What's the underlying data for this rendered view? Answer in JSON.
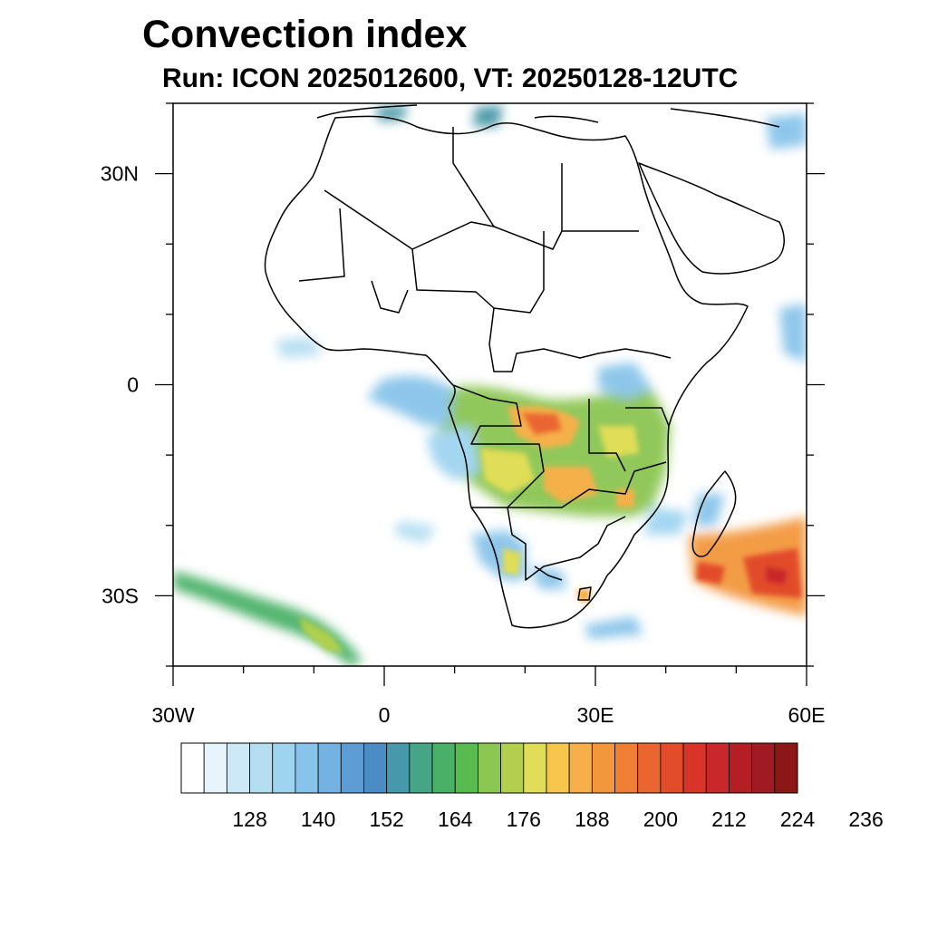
{
  "title": "Convection index",
  "subtitle": "Run: ICON 2025012600,  VT: 20250128-12UTC",
  "map": {
    "lon_range": [
      -30,
      60
    ],
    "lat_range": [
      -40,
      40
    ],
    "lon_ticks": [
      {
        "value": -30,
        "label": "30W"
      },
      {
        "value": 0,
        "label": "0"
      },
      {
        "value": 30,
        "label": "30E"
      },
      {
        "value": 60,
        "label": "60E"
      }
    ],
    "lat_ticks": [
      {
        "value": 30,
        "label": "30N"
      },
      {
        "value": 0,
        "label": "0"
      },
      {
        "value": -30,
        "label": "30S"
      }
    ]
  },
  "colorbar": {
    "colors": [
      "#ffffff",
      "#e6f4fc",
      "#cde9f7",
      "#b5def3",
      "#9fd4f0",
      "#88c4ea",
      "#73b2e2",
      "#5e9cd6",
      "#4b8cc6",
      "#4798a8",
      "#46a585",
      "#48b167",
      "#58bb4f",
      "#8cc653",
      "#b0d04e",
      "#e0dd56",
      "#f6c64d",
      "#f5b04a",
      "#f3973c",
      "#f07e34",
      "#ea6530",
      "#e24c2b",
      "#d83428",
      "#c8282a",
      "#b41f26",
      "#a01a23",
      "#8b1717"
    ],
    "labels": [
      "128",
      "140",
      "152",
      "164",
      "176",
      "188",
      "200",
      "212",
      "224",
      "236"
    ]
  }
}
